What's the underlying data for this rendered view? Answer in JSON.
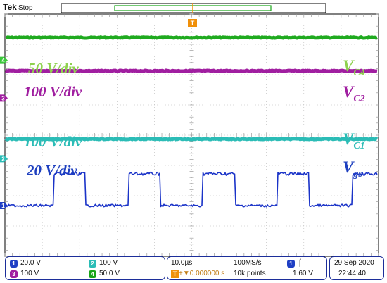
{
  "header": {
    "brand": "Tek",
    "run_state": "Stop"
  },
  "trigger_marker": "T",
  "scope_colors": {
    "background": "#ffffff",
    "grid": "#b4b4b4",
    "grid_minor": "#9a9a9a",
    "border": "#000000",
    "trigger": "#f0900a",
    "record_bar": "#18a518"
  },
  "channels": [
    {
      "id": "4",
      "scale_label": "50 V/div",
      "signal": "V",
      "subscript": "C4",
      "color": "#3cc73c",
      "label_color": "#8fd14f",
      "trace_color": "#1faa1f",
      "level_div": 5.55
    },
    {
      "id": "3",
      "scale_label": "100 V/div",
      "signal": "V",
      "subscript": "C2",
      "color": "#a01ea0",
      "label_color": "#a01ea0",
      "trace_color": "#a01ea0",
      "level_div": 4.45
    },
    {
      "id": "2",
      "scale_label": "100 V/div",
      "signal": "V",
      "subscript": "C1",
      "color": "#2bbcb6",
      "label_color": "#2bbcb6",
      "trace_color": "#2bbcb6",
      "level_div": 2.2
    },
    {
      "id": "1",
      "scale_label": "20 V/div",
      "signal": "V",
      "subscript": "gs",
      "color": "#1f3fc4",
      "label_color": "#1d3fbf",
      "trace_color": "#1a33c8",
      "level_div": 0
    }
  ],
  "channel_markers": [
    {
      "id": "4",
      "level_div": 4.8,
      "color": "#3cc73c"
    },
    {
      "id": "3",
      "level_div": 3.55,
      "color": "#a01ea0"
    },
    {
      "id": "2",
      "level_div": 1.55,
      "color": "#2bbcb6"
    },
    {
      "id": "1",
      "level_div": 0,
      "color": "#1f3fc4"
    }
  ],
  "gate_pulse": {
    "high_div": 1.05,
    "pulse_count": 5,
    "period_div": 2.0,
    "first_rise_div": 1.3,
    "width_div": 0.85
  },
  "status_bar": {
    "ch1": {
      "id": "1",
      "scale": "20.0 V",
      "color": "#1f3fc4"
    },
    "ch2": {
      "id": "2",
      "scale": "100 V",
      "color": "#2bbcb6"
    },
    "ch3": {
      "id": "3",
      "scale": "100 V",
      "color": "#a01ea0"
    },
    "ch4": {
      "id": "4",
      "scale": "50.0 V",
      "color": "#18a518"
    },
    "timebase": "10.0µs",
    "trigger_delay": "+▼0.000000 s",
    "sample_rate": "100MS/s",
    "record_length": "10k points",
    "trigger_source": "1",
    "trigger_slope": "⌠",
    "trigger_level": "1.60 V",
    "date": "29 Sep 2020",
    "time": "22:44:40"
  }
}
